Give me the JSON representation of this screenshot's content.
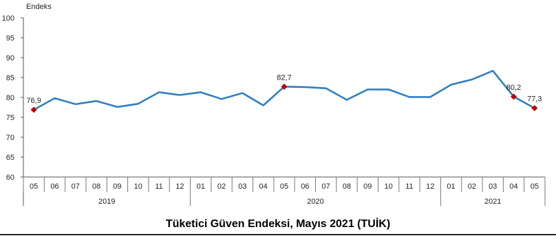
{
  "chart_data": {
    "type": "line",
    "ylabel": "Endeks",
    "ylim": [
      60,
      100
    ],
    "yticks": [
      60,
      65,
      70,
      75,
      80,
      85,
      90,
      95,
      100
    ],
    "x": [
      "05",
      "06",
      "07",
      "08",
      "09",
      "10",
      "11",
      "12",
      "01",
      "02",
      "03",
      "04",
      "05",
      "06",
      "07",
      "08",
      "09",
      "10",
      "11",
      "12",
      "01",
      "02",
      "03",
      "04",
      "05"
    ],
    "groups": [
      {
        "label": "2019",
        "from": 0,
        "to": 7
      },
      {
        "label": "2020",
        "from": 8,
        "to": 19
      },
      {
        "label": "2021",
        "from": 20,
        "to": 24
      }
    ],
    "series": [
      {
        "values": [
          76.9,
          79.8,
          78.3,
          79.1,
          77.6,
          78.4,
          81.3,
          80.6,
          81.3,
          79.6,
          81.1,
          78.0,
          82.7,
          82.6,
          82.3,
          79.4,
          82.0,
          82.0,
          80.1,
          80.1,
          83.2,
          84.5,
          86.7,
          80.2,
          77.3
        ],
        "color": "#2e7fc1"
      }
    ],
    "highlighted": [
      {
        "index": 0,
        "label": "76,9"
      },
      {
        "index": 12,
        "label": "82,7"
      },
      {
        "index": 23,
        "label": "80,2"
      },
      {
        "index": 24,
        "label": "77,3"
      }
    ],
    "marker_color": "#c00000",
    "grid": false,
    "title": "Tüketici Güven Endeksi, Mayıs 2021 (TUİK)"
  }
}
